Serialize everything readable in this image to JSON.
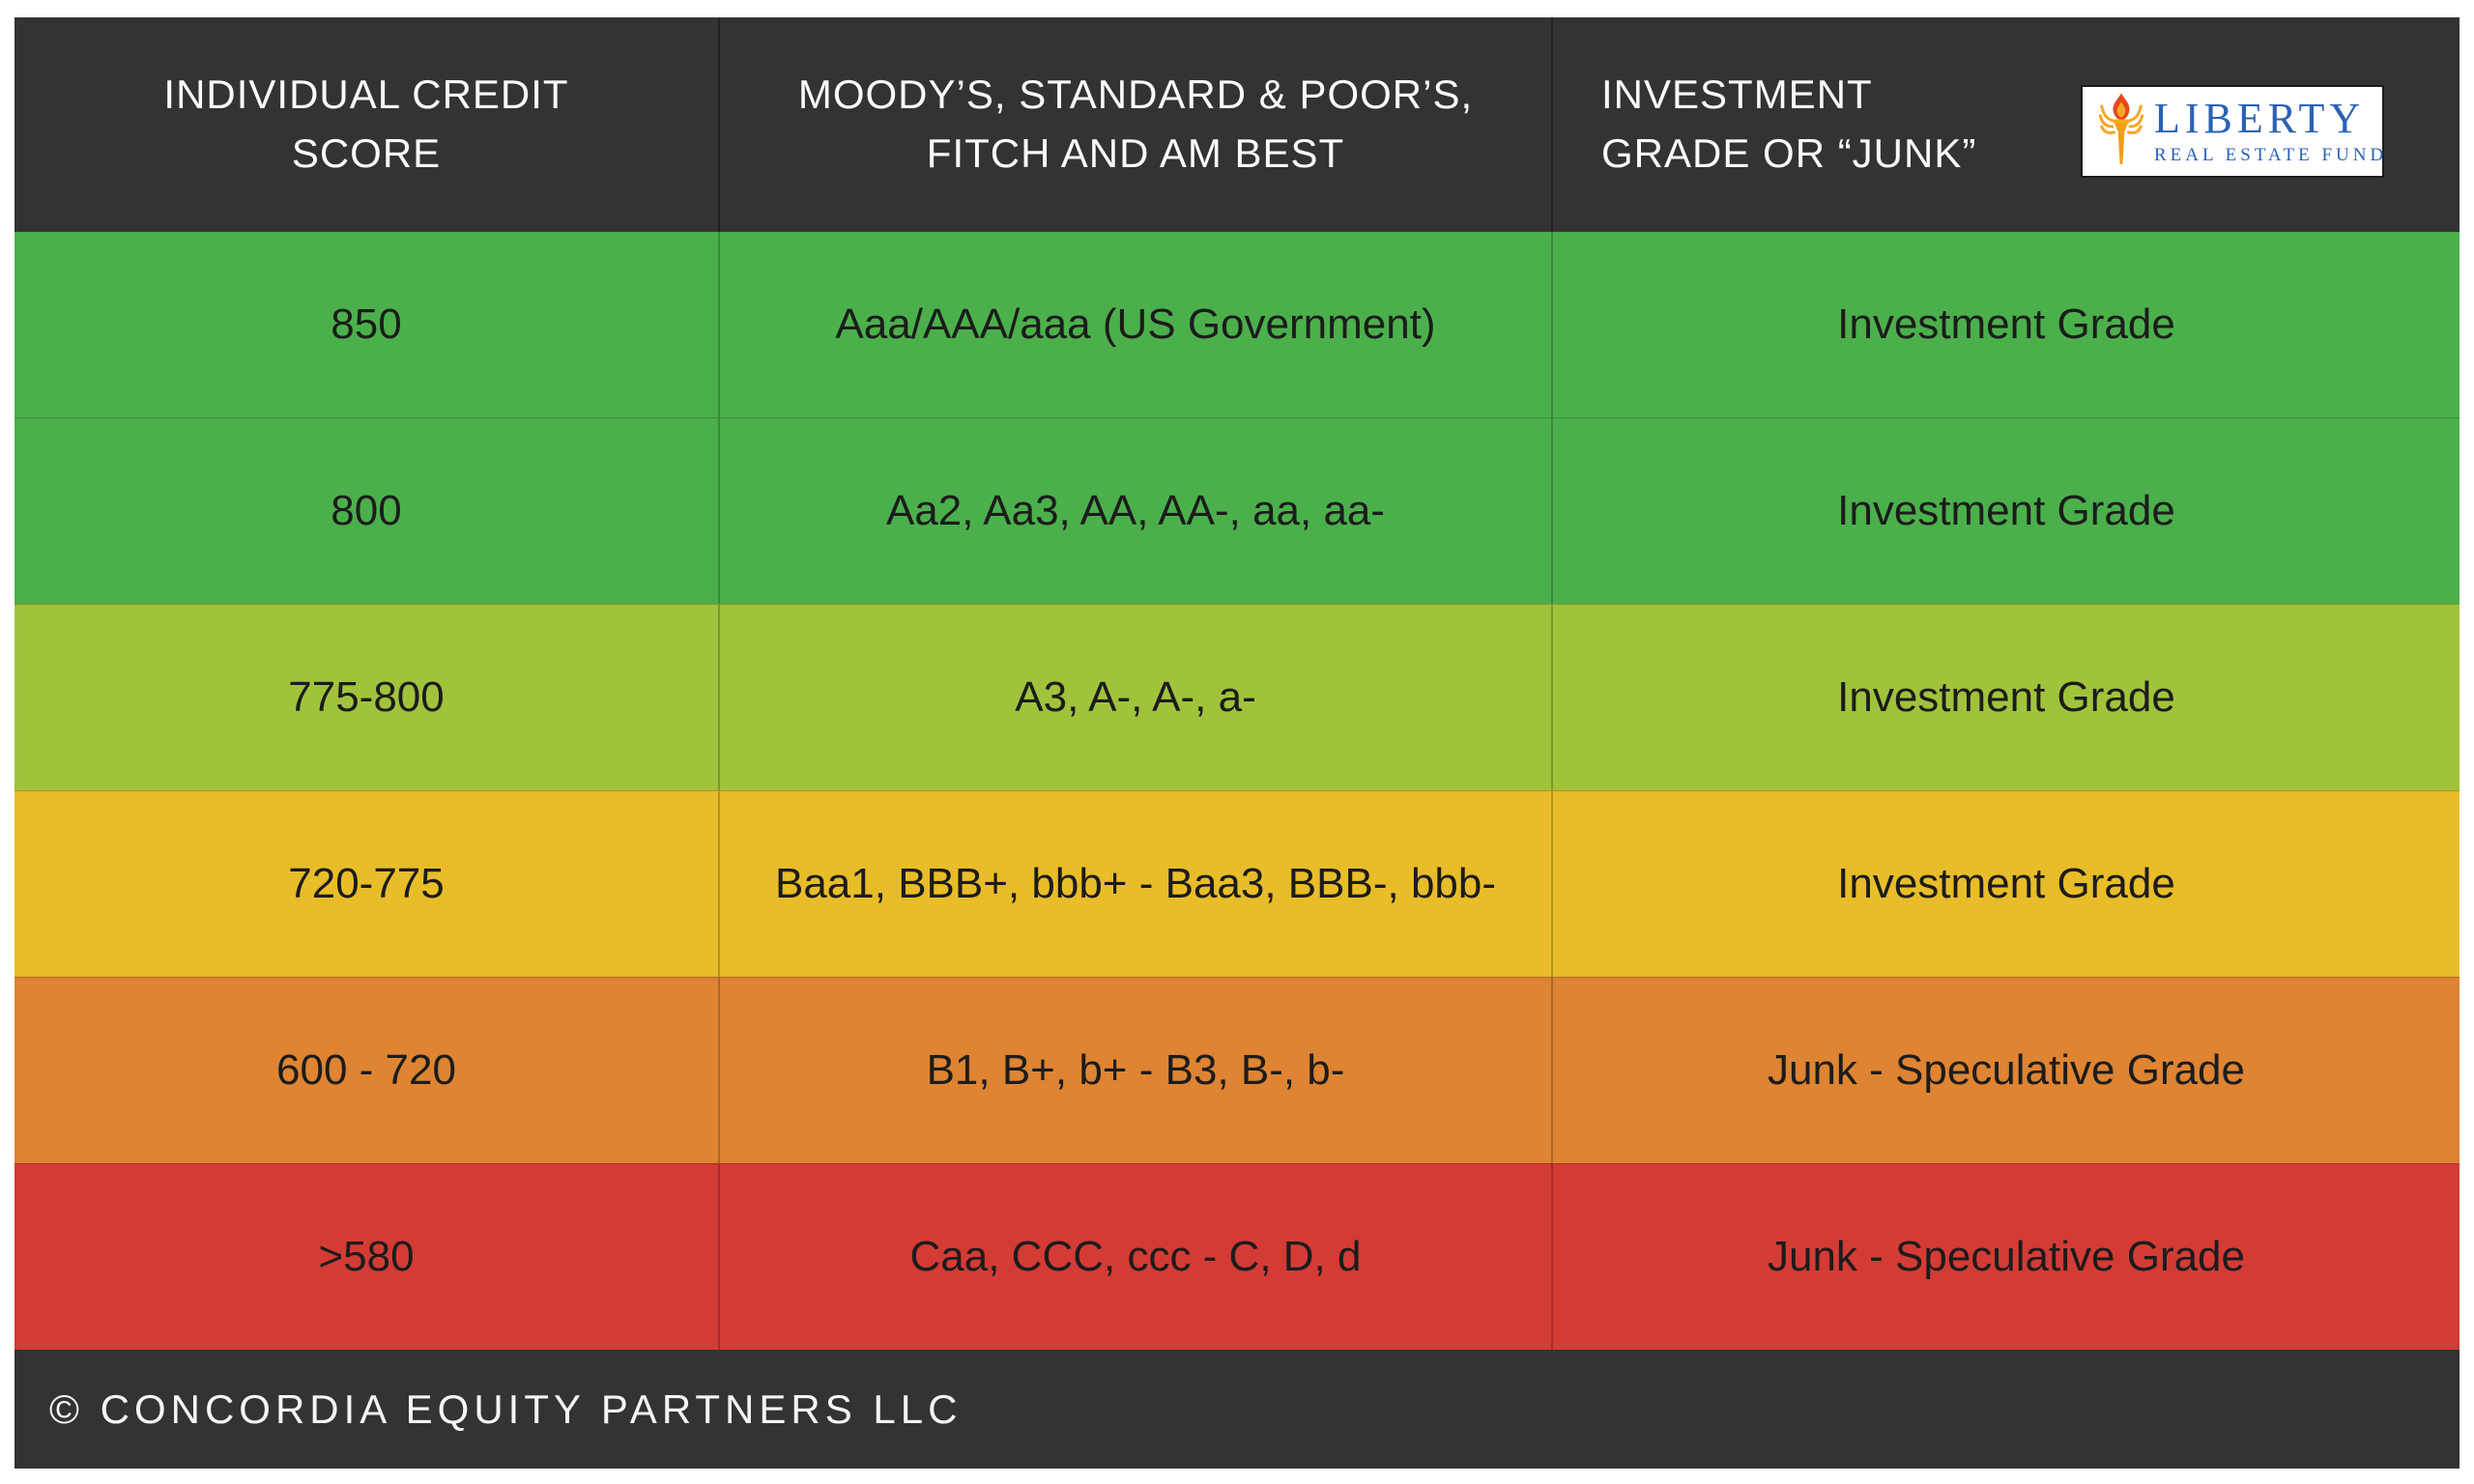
{
  "header": {
    "columns": [
      {
        "title": "INDIVIDUAL CREDIT\nSCORE"
      },
      {
        "title": "MOODY’S, STANDARD & POOR’S,\nFITCH AND AM BEST"
      },
      {
        "title": "INVESTMENT\nGRADE OR “JUNK”"
      }
    ]
  },
  "logo": {
    "name": "LIBERTY",
    "subtitle": "REAL ESTATE FUND",
    "icon": "torch-icon",
    "text_color": "#2b62b4",
    "flame_color": "#e8481f",
    "gold_color": "#f49d16"
  },
  "theme": {
    "header_bg": "#333333",
    "footer_bg": "#333333",
    "row_text": "#1c1c1c"
  },
  "table": {
    "rows": [
      {
        "score": "850",
        "ratings": "Aaa/AAA/aaa (US Government)",
        "grade": "Investment Grade",
        "color": "#4bb04b"
      },
      {
        "score": "800",
        "ratings": "Aa2, Aa3, AA, AA-, aa, aa-",
        "grade": "Investment Grade",
        "color": "#4bb04b"
      },
      {
        "score": "775-800",
        "ratings": "A3, A-, A-, a-",
        "grade": "Investment Grade",
        "color": "#a1c33c"
      },
      {
        "score": "720-775",
        "ratings": "Baa1, BBB+, bbb+ - Baa3, BBB-, bbb-",
        "grade": "Investment Grade",
        "color": "#e8bd29"
      },
      {
        "score": "600 - 720",
        "ratings": "B1, B+, b+ - B3, B-, b-",
        "grade": "Junk - Speculative Grade",
        "color": "#de8432"
      },
      {
        "score": ">580",
        "ratings": "Caa, CCC, ccc - C, D, d",
        "grade": "Junk - Speculative Grade",
        "color": "#d43b35"
      }
    ]
  },
  "footer": {
    "copyright": "© CONCORDIA EQUITY PARTNERS LLC"
  }
}
